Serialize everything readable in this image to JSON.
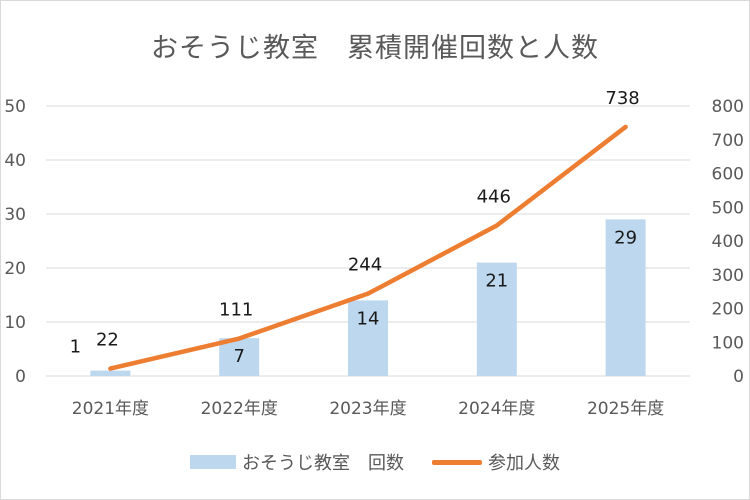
{
  "chart_data": {
    "type": "bar+line",
    "title": "おそうじ教室　累積開催回数と人数",
    "categories": [
      "2021年度",
      "2022年度",
      "2023年度",
      "2024年度",
      "2025年度"
    ],
    "series": [
      {
        "name": "おそうじ教室　回数",
        "type": "bar",
        "axis": "left",
        "color": "#bdd7ee",
        "values": [
          1,
          7,
          14,
          21,
          29
        ]
      },
      {
        "name": "参加人数",
        "type": "line",
        "axis": "right",
        "color": "#ed7d31",
        "values": [
          22,
          111,
          244,
          446,
          738
        ]
      }
    ],
    "y_left": {
      "min": 0,
      "max": 50,
      "ticks": [
        0,
        10,
        20,
        30,
        40,
        50
      ]
    },
    "y_right": {
      "min": 0,
      "max": 800,
      "ticks": [
        0,
        100,
        200,
        300,
        400,
        500,
        600,
        700,
        800
      ]
    },
    "grid": true,
    "legend_position": "bottom"
  }
}
